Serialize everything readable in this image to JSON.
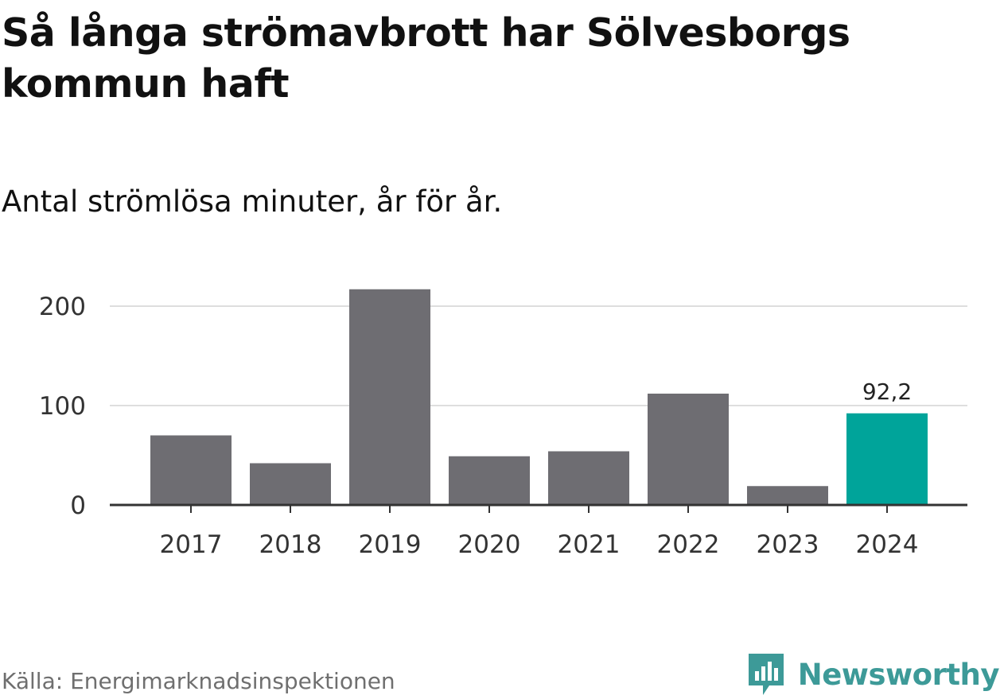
{
  "title": "Så långa strömavbrott har Sölvesborgs kommun haft",
  "subtitle": "Antal strömlösa minuter, år för år.",
  "source": "Källa: Energimarknadsinspektionen",
  "brand": {
    "name": "Newsworthy",
    "icon": "newsworthy-logo-icon",
    "color": "#3d9a98"
  },
  "colors": {
    "bar": "#6e6d72",
    "highlight": "#00a49a",
    "grid": "#dedede",
    "axis": "#333333"
  },
  "chart_data": {
    "type": "bar",
    "categories": [
      "2017",
      "2018",
      "2019",
      "2020",
      "2021",
      "2022",
      "2023",
      "2024"
    ],
    "values": [
      70,
      42,
      217,
      49,
      54,
      112,
      19,
      92.2
    ],
    "highlight_index": 7,
    "data_labels": [
      null,
      null,
      null,
      null,
      null,
      null,
      null,
      "92,2"
    ],
    "yticks": [
      0,
      100,
      200
    ],
    "ylim": [
      0,
      220
    ],
    "xlabel": "",
    "ylabel": "",
    "grid": true,
    "legend": "none"
  }
}
